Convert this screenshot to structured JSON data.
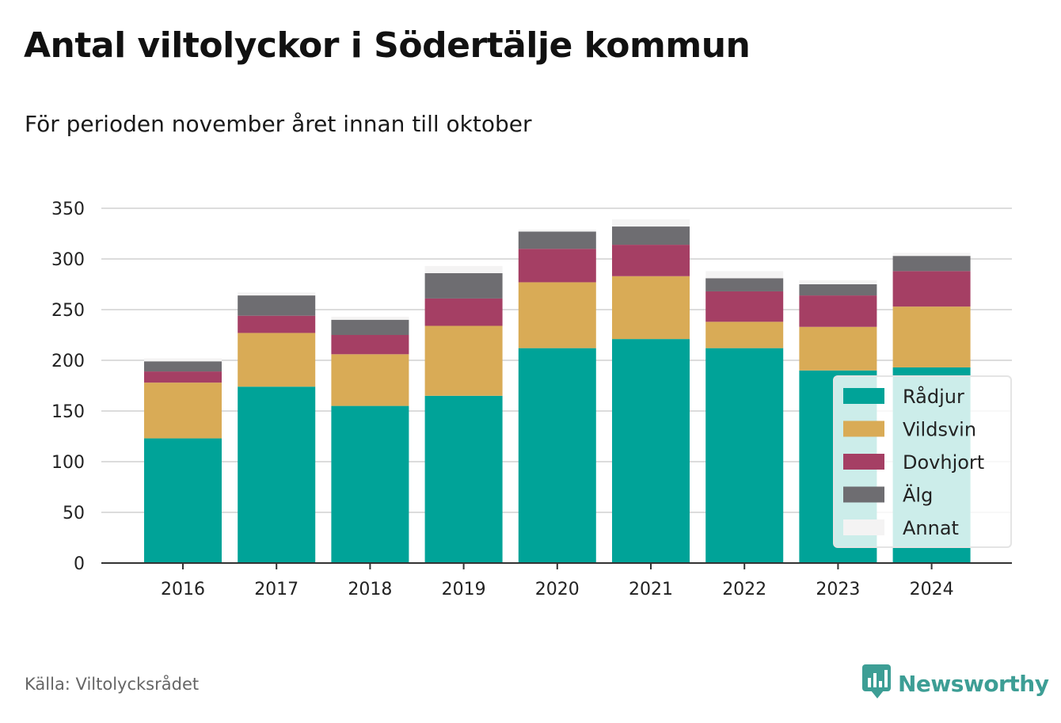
{
  "header": {
    "title": "Antal viltolyckor i Södertälje kommun",
    "subtitle": "För perioden november året innan till oktober"
  },
  "footer": {
    "source": "Källa: Viltolycksrådet",
    "brand": "Newsworthy",
    "brand_icon": "newsworthy-logo-icon"
  },
  "chart_data": {
    "type": "bar",
    "stacked": true,
    "categories": [
      "2016",
      "2017",
      "2018",
      "2019",
      "2020",
      "2021",
      "2022",
      "2023",
      "2024"
    ],
    "series": [
      {
        "name": "Rådjur",
        "color": "#00a398",
        "values": [
          123,
          174,
          155,
          165,
          212,
          221,
          212,
          190,
          193
        ]
      },
      {
        "name": "Vildsvin",
        "color": "#d9ab56",
        "values": [
          55,
          53,
          51,
          69,
          65,
          62,
          26,
          43,
          60
        ]
      },
      {
        "name": "Dovhjort",
        "color": "#a53f64",
        "values": [
          11,
          17,
          19,
          27,
          33,
          31,
          30,
          31,
          35
        ]
      },
      {
        "name": "Älg",
        "color": "#6e6d71",
        "values": [
          10,
          20,
          15,
          25,
          17,
          18,
          13,
          11,
          15
        ]
      },
      {
        "name": "Annat",
        "color": "#f4f3f3",
        "values": [
          3,
          3,
          3,
          7,
          2,
          7,
          7,
          4,
          3
        ]
      }
    ],
    "yticks": [
      0,
      50,
      100,
      150,
      200,
      250,
      300,
      350
    ],
    "ylim": [
      0,
      350
    ],
    "grid": true,
    "legend_position": "right"
  }
}
